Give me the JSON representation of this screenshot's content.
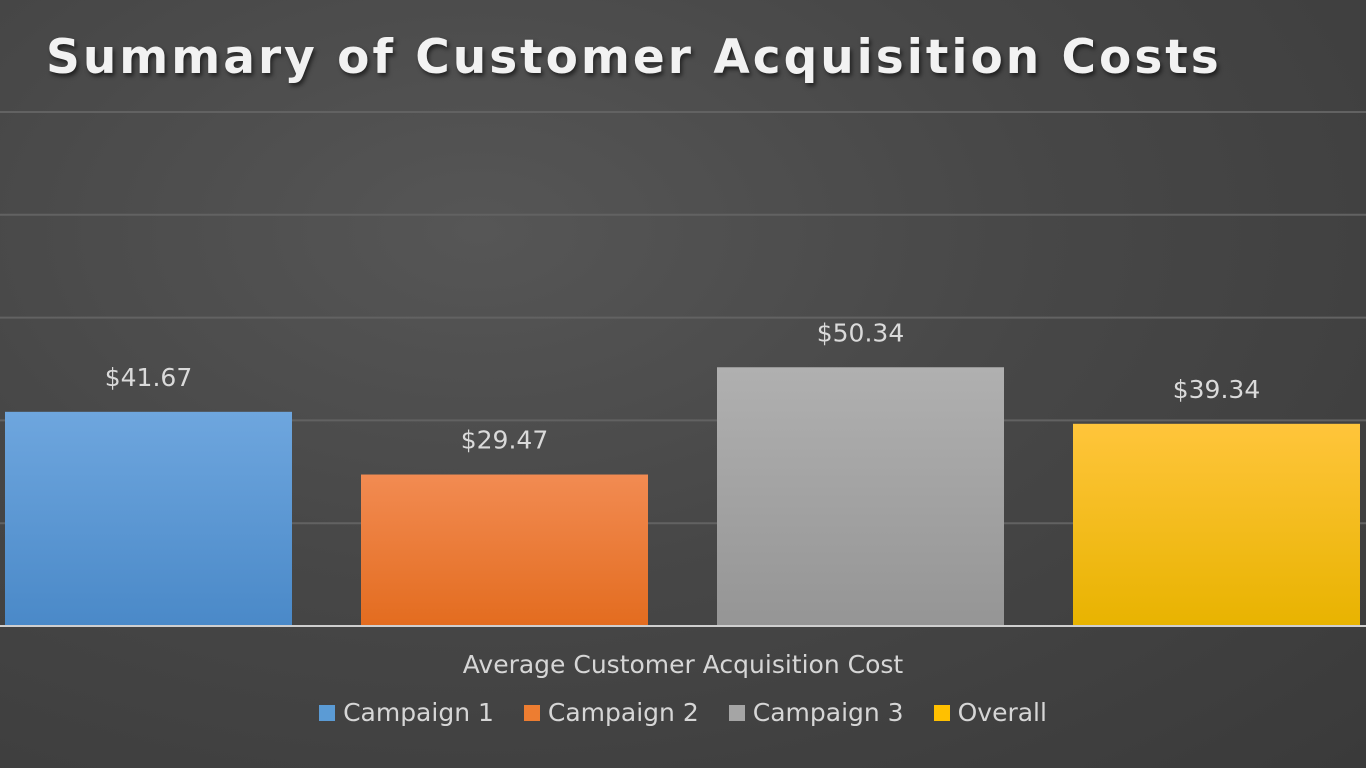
{
  "chart_data": {
    "type": "bar",
    "title": "Summary of Customer Acquisition Costs",
    "categories": [
      "Average Customer Acquisition Cost"
    ],
    "series": [
      {
        "name": "Campaign 1",
        "values": [
          41.67
        ],
        "label": "$41.67",
        "color": "#5b9bd5"
      },
      {
        "name": "Campaign 2",
        "values": [
          29.47
        ],
        "label": "$29.47",
        "color": "#ed7d31"
      },
      {
        "name": "Campaign 3",
        "values": [
          50.34
        ],
        "label": "$50.34",
        "color": "#a5a5a5"
      },
      {
        "name": "Overall",
        "values": [
          39.34
        ],
        "label": "$39.34",
        "color": "#ffc000"
      }
    ],
    "ylim": [
      0,
      100
    ],
    "grid": true,
    "legend_position": "bottom"
  }
}
